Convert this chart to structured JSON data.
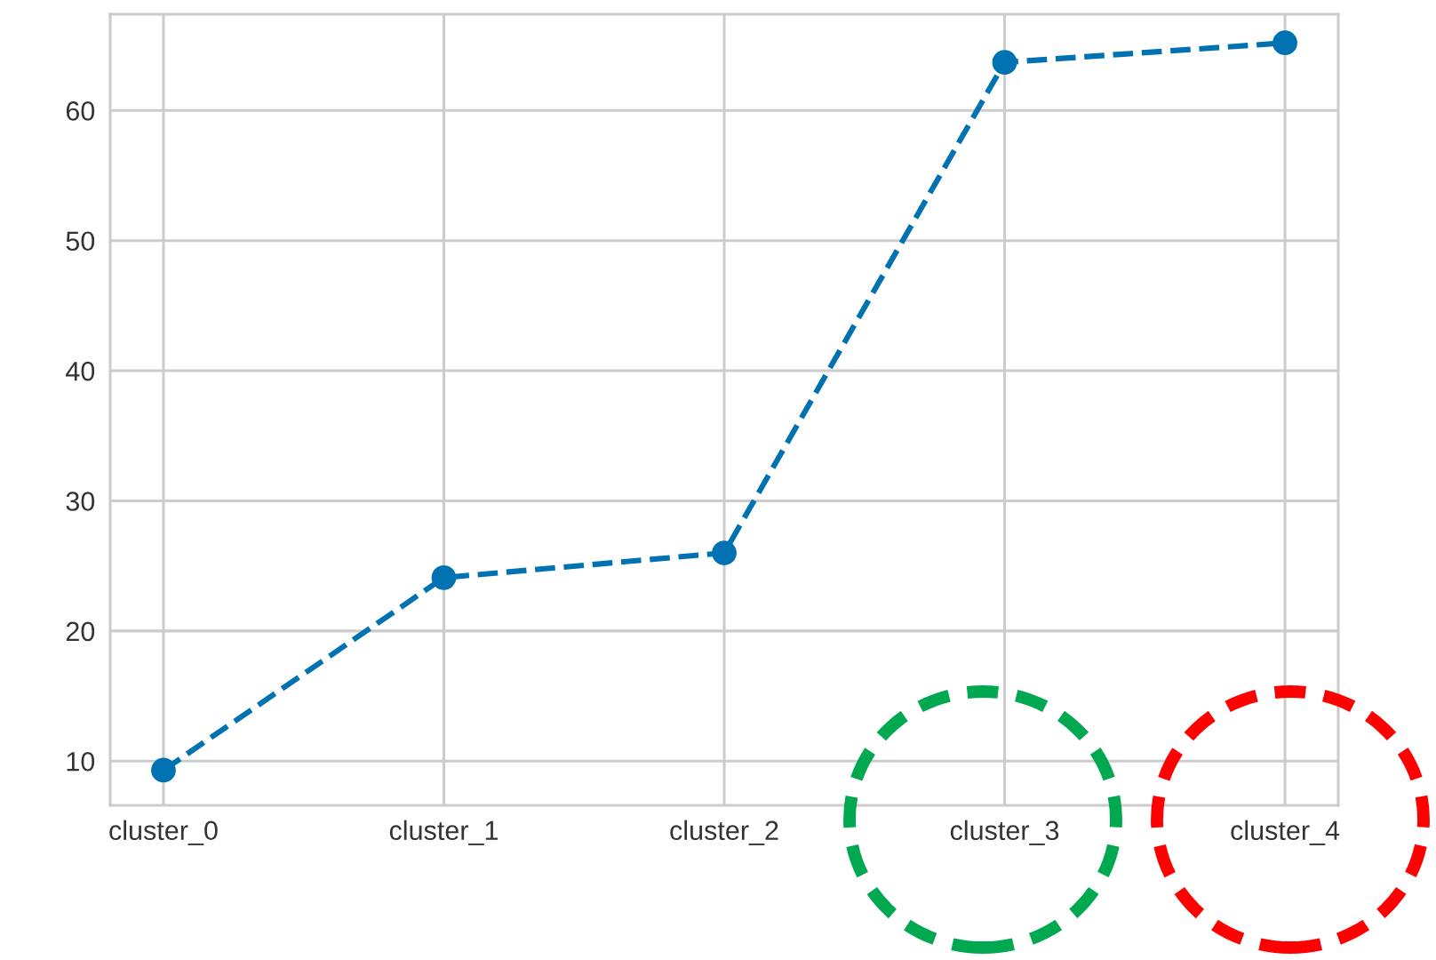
{
  "chart_data": {
    "type": "line",
    "categories": [
      "cluster_0",
      "cluster_1",
      "cluster_2",
      "cluster_3",
      "cluster_4"
    ],
    "series": [
      {
        "color": "#0072b2",
        "values": [
          9.3,
          24.1,
          26.0,
          63.7,
          65.2
        ]
      }
    ],
    "ylim": [
      6.6,
      67.4
    ],
    "yticks": [
      10,
      20,
      30,
      40,
      50,
      60
    ],
    "grid": true,
    "marker": "circle",
    "line_style": "dashed"
  }
}
